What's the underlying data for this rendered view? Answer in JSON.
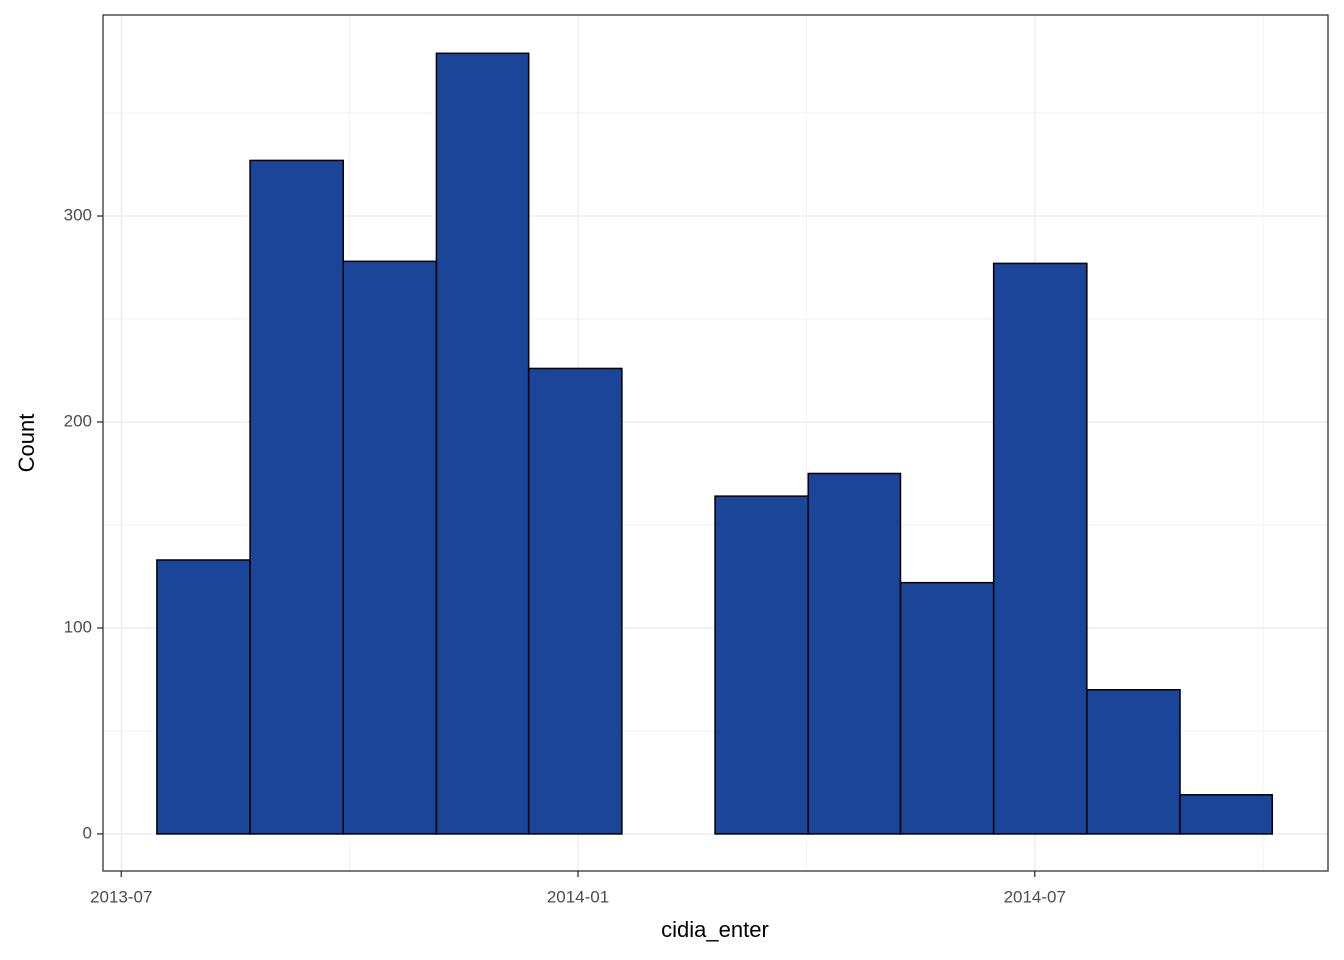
{
  "chart_data": {
    "type": "histogram",
    "x_label": "cidia_enter",
    "y_label": "Count",
    "bins": [
      2013.539,
      2013.641,
      2013.743,
      2013.845,
      2013.946,
      2014.048,
      2014.15,
      2014.252,
      2014.353,
      2014.455,
      2014.557,
      2014.659,
      2014.76
    ],
    "values": [
      133,
      327,
      278,
      379,
      226,
      0,
      164,
      175,
      122,
      277,
      70,
      19
    ],
    "color": "#1a4599",
    "xlim": [
      2013.48,
      2014.821
    ],
    "xticks": [
      {
        "value": 2013.5,
        "label": "2013-07"
      },
      {
        "value": 2014.0,
        "label": "2014-01"
      },
      {
        "value": 2014.5,
        "label": "2014-07"
      }
    ],
    "ylim": [
      -18,
      397.6
    ],
    "yticks": [
      0,
      100,
      200,
      300
    ],
    "grid": true
  }
}
